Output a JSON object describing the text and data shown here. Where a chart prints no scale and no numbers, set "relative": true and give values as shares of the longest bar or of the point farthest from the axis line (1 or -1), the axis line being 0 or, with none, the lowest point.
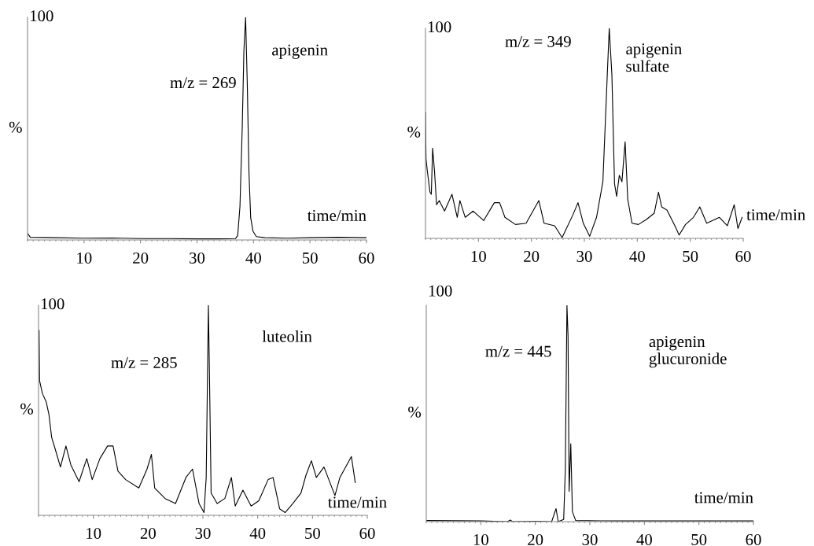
{
  "chart_data": [
    {
      "type": "line",
      "title": "apigenin",
      "xlabel": "time/min",
      "ylabel": "%",
      "relative": true,
      "annotations": [
        "m/z = 269",
        "100"
      ],
      "xlim": [
        0,
        60
      ],
      "xticks": [
        10,
        20,
        30,
        40,
        50,
        60
      ],
      "grid": false,
      "legend": false,
      "series": [
        {
          "color": "#000000",
          "x": [
            0,
            0.5,
            5,
            10,
            15,
            20,
            25,
            30,
            34,
            36.8,
            37.2,
            37.6,
            38.0,
            38.3,
            38.6,
            38.9,
            39.2,
            39.5,
            39.9,
            40.5,
            42,
            46,
            50,
            55,
            60
          ],
          "values": [
            0.03,
            0.012,
            0.01,
            0.008,
            0.009,
            0.006,
            0.006,
            0.005,
            0.005,
            0.006,
            0.02,
            0.15,
            0.5,
            0.85,
            1.0,
            0.7,
            0.3,
            0.1,
            0.04,
            0.015,
            0.01,
            0.008,
            0.01,
            0.012,
            0.01
          ]
        }
      ]
    },
    {
      "type": "line",
      "title": "apigenin\nsulfate",
      "xlabel": "time/min",
      "ylabel": "%",
      "relative": true,
      "annotations": [
        "m/z = 349",
        "100"
      ],
      "xlim": [
        0,
        60
      ],
      "xticks": [
        10,
        20,
        30,
        40,
        50,
        60
      ],
      "grid": false,
      "legend": false,
      "series": [
        {
          "color": "#000000",
          "x": [
            0,
            0.1,
            0.35,
            0.85,
            1.1,
            1.35,
            1.7,
            2.1,
            2.6,
            3.6,
            5.0,
            6.0,
            6.5,
            7.5,
            9.0,
            11.0,
            13.0,
            14.0,
            15.0,
            17.0,
            19.0,
            21.4,
            22.4,
            24.4,
            25.8,
            27.8,
            28.8,
            29.8,
            31.0,
            32.3,
            33.5,
            34.3,
            34.7,
            35.2,
            35.7,
            36.1,
            36.6,
            37.1,
            37.7,
            38.2,
            39.0,
            40.2,
            41.7,
            43.2,
            44.0,
            44.6,
            45.6,
            47.1,
            47.9,
            49.1,
            50.6,
            51.8,
            53.1,
            55.5,
            57.0,
            58.3,
            59.0,
            59.8
          ],
          "values": [
            0.6,
            0.38,
            0.32,
            0.22,
            0.21,
            0.43,
            0.32,
            0.16,
            0.18,
            0.13,
            0.21,
            0.1,
            0.18,
            0.1,
            0.13,
            0.085,
            0.17,
            0.17,
            0.1,
            0.066,
            0.072,
            0.18,
            0.072,
            0.06,
            0.004,
            0.11,
            0.17,
            0.072,
            0.01,
            0.1,
            0.27,
            0.76,
            1.0,
            0.78,
            0.26,
            0.2,
            0.3,
            0.27,
            0.46,
            0.185,
            0.072,
            0.066,
            0.09,
            0.12,
            0.22,
            0.15,
            0.135,
            0.06,
            0.016,
            0.066,
            0.1,
            0.15,
            0.072,
            0.1,
            0.06,
            0.16,
            0.047,
            0.1
          ]
        }
      ]
    },
    {
      "type": "line",
      "title": "luteolin",
      "xlabel": "time/min",
      "ylabel": "%",
      "relative": true,
      "annotations": [
        "m/z = 285",
        "100"
      ],
      "xlim": [
        0,
        60
      ],
      "xticks": [
        10,
        20,
        30,
        40,
        50,
        60
      ],
      "grid": false,
      "legend": false,
      "series": [
        {
          "color": "#000000",
          "x": [
            0.1,
            0.2,
            0.7,
            1.4,
            1.9,
            2.4,
            3.1,
            4.0,
            5.0,
            5.9,
            7.4,
            8.8,
            9.8,
            11.2,
            12.6,
            13.6,
            14.5,
            15.9,
            18.3,
            19.8,
            20.6,
            21.2,
            23.1,
            25.0,
            26.9,
            28.1,
            29.3,
            30.2,
            30.6,
            31.0,
            31.2,
            31.5,
            32.6,
            34.0,
            35.2,
            35.9,
            37.3,
            38.8,
            40.2,
            41.9,
            42.8,
            44.0,
            45.0,
            46.4,
            47.9,
            48.8,
            49.8,
            50.7,
            52.1,
            54.1,
            55.0,
            57.1,
            57.8
          ],
          "values": [
            0.88,
            0.64,
            0.58,
            0.54,
            0.48,
            0.37,
            0.31,
            0.23,
            0.33,
            0.24,
            0.16,
            0.27,
            0.17,
            0.27,
            0.33,
            0.33,
            0.21,
            0.17,
            0.13,
            0.22,
            0.29,
            0.13,
            0.08,
            0.056,
            0.18,
            0.22,
            0.056,
            0.013,
            0.18,
            1.0,
            0.66,
            0.106,
            0.056,
            0.08,
            0.18,
            0.044,
            0.12,
            0.044,
            0.069,
            0.17,
            0.18,
            0.031,
            0.013,
            0.056,
            0.106,
            0.19,
            0.26,
            0.18,
            0.23,
            0.094,
            0.18,
            0.28,
            0.156
          ]
        }
      ]
    },
    {
      "type": "line",
      "title": "apigenin\nglucuronide",
      "xlabel": "time/min",
      "ylabel": "%",
      "relative": true,
      "annotations": [
        "m/z = 445",
        "100"
      ],
      "xlim": [
        0,
        60
      ],
      "xticks": [
        10,
        20,
        30,
        40,
        50,
        60
      ],
      "grid": false,
      "legend": false,
      "series": [
        {
          "color": "#000000",
          "x": [
            0,
            10,
            14.9,
            15.4,
            15.8,
            20,
            23.0,
            23.8,
            24.2,
            25.2,
            25.5,
            25.8,
            26.0,
            26.2,
            26.5,
            26.8,
            27.4,
            35,
            45,
            60
          ],
          "values": [
            0.005,
            0.003,
            0.0,
            0.007,
            0.0,
            0.002,
            0.0,
            0.06,
            0.0,
            0.01,
            0.24,
            1.0,
            0.86,
            0.14,
            0.36,
            0.046,
            0.005,
            0.003,
            0.003,
            0.003
          ]
        }
      ]
    }
  ]
}
